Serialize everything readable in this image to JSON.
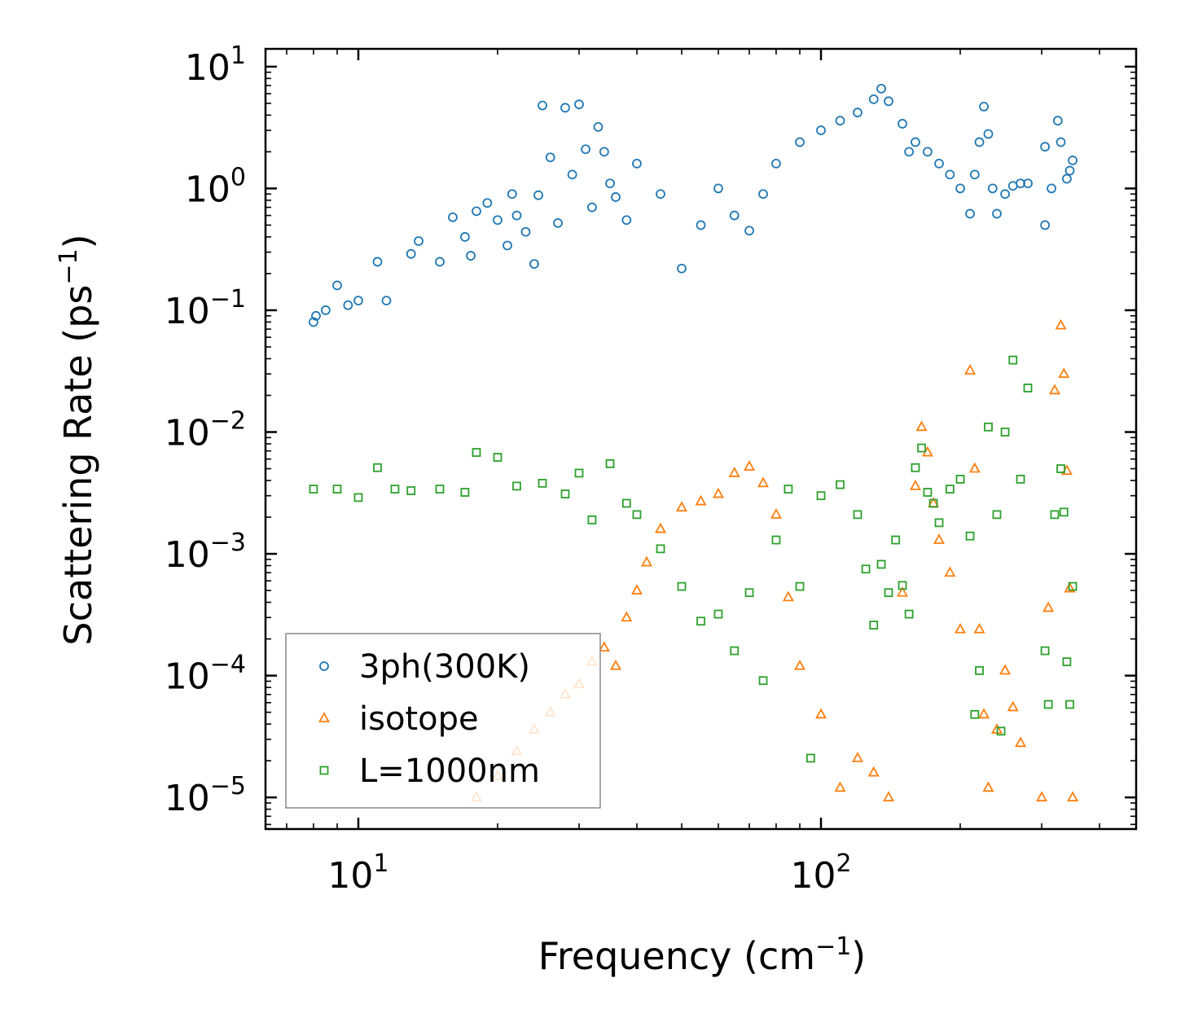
{
  "chart_data": {
    "type": "scatter",
    "title": "",
    "xlabel": "Frequency (cm",
    "xlabel_sup": "−1",
    "xlabel_close": ")",
    "ylabel": "Scattering Rate (ps",
    "ylabel_sup": "−1",
    "ylabel_close": ")",
    "xscale": "log",
    "yscale": "log",
    "xlim": [
      6.3,
      480
    ],
    "ylim": [
      5.5e-06,
      14
    ],
    "x_ticks": [
      {
        "value": 10,
        "base": "10",
        "exp": "1"
      },
      {
        "value": 100,
        "base": "10",
        "exp": "2"
      }
    ],
    "y_ticks": [
      {
        "value": 10,
        "base": "10",
        "exp": "1"
      },
      {
        "value": 1,
        "base": "10",
        "exp": "0"
      },
      {
        "value": 0.1,
        "base": "10",
        "exp": "−1"
      },
      {
        "value": 0.01,
        "base": "10",
        "exp": "−2"
      },
      {
        "value": 0.001,
        "base": "10",
        "exp": "−3"
      },
      {
        "value": 0.0001,
        "base": "10",
        "exp": "−4"
      },
      {
        "value": 1e-05,
        "base": "10",
        "exp": "−5"
      }
    ],
    "legend_position": "lower-left",
    "series": [
      {
        "name": "3ph(300K)",
        "marker": "circle",
        "color": "#1f77b4",
        "points": [
          [
            8,
            0.08
          ],
          [
            8.1,
            0.09
          ],
          [
            8.5,
            0.1
          ],
          [
            9,
            0.16
          ],
          [
            9.5,
            0.11
          ],
          [
            10,
            0.12
          ],
          [
            11,
            0.25
          ],
          [
            11.5,
            0.12
          ],
          [
            13,
            0.29
          ],
          [
            13.5,
            0.37
          ],
          [
            15,
            0.25
          ],
          [
            16,
            0.58
          ],
          [
            17,
            0.4
          ],
          [
            17.5,
            0.28
          ],
          [
            18,
            0.65
          ],
          [
            19,
            0.76
          ],
          [
            20,
            0.55
          ],
          [
            21,
            0.34
          ],
          [
            21.5,
            0.9
          ],
          [
            22,
            0.6
          ],
          [
            23,
            0.44
          ],
          [
            24,
            0.24
          ],
          [
            24.5,
            0.88
          ],
          [
            25,
            4.8
          ],
          [
            26,
            1.8
          ],
          [
            27,
            0.52
          ],
          [
            28,
            4.6
          ],
          [
            29,
            1.3
          ],
          [
            30,
            4.9
          ],
          [
            31,
            2.1
          ],
          [
            32,
            0.7
          ],
          [
            33,
            3.2
          ],
          [
            34,
            2.0
          ],
          [
            35,
            1.1
          ],
          [
            36,
            0.85
          ],
          [
            38,
            0.55
          ],
          [
            40,
            1.6
          ],
          [
            45,
            0.9
          ],
          [
            50,
            0.22
          ],
          [
            55,
            0.5
          ],
          [
            60,
            1.0
          ],
          [
            65,
            0.6
          ],
          [
            70,
            0.45
          ],
          [
            75,
            0.9
          ],
          [
            80,
            1.6
          ],
          [
            90,
            2.4
          ],
          [
            100,
            3.0
          ],
          [
            110,
            3.6
          ],
          [
            120,
            4.2
          ],
          [
            130,
            5.4
          ],
          [
            135,
            6.6
          ],
          [
            140,
            5.2
          ],
          [
            150,
            3.4
          ],
          [
            155,
            2.0
          ],
          [
            160,
            2.4
          ],
          [
            170,
            2.0
          ],
          [
            180,
            1.6
          ],
          [
            190,
            1.3
          ],
          [
            200,
            1.0
          ],
          [
            210,
            0.62
          ],
          [
            215,
            1.3
          ],
          [
            220,
            2.4
          ],
          [
            225,
            4.7
          ],
          [
            230,
            2.8
          ],
          [
            235,
            1.0
          ],
          [
            240,
            0.62
          ],
          [
            250,
            0.9
          ],
          [
            260,
            1.05
          ],
          [
            270,
            1.1
          ],
          [
            280,
            1.1
          ],
          [
            305,
            0.5
          ],
          [
            305,
            2.2
          ],
          [
            315,
            1.0
          ],
          [
            325,
            3.6
          ],
          [
            330,
            2.4
          ],
          [
            340,
            1.2
          ],
          [
            345,
            1.4
          ],
          [
            350,
            1.7
          ]
        ]
      },
      {
        "name": "isotope",
        "marker": "triangle",
        "color": "#ff7f0e",
        "points": [
          [
            18,
            1e-05
          ],
          [
            20,
            1.5e-05
          ],
          [
            22,
            2.4e-05
          ],
          [
            24,
            3.6e-05
          ],
          [
            26,
            5e-05
          ],
          [
            28,
            7e-05
          ],
          [
            30,
            8.5e-05
          ],
          [
            32,
            0.00013
          ],
          [
            34,
            0.00017
          ],
          [
            36,
            0.00012
          ],
          [
            38,
            0.0003
          ],
          [
            40,
            0.0005
          ],
          [
            42,
            0.00085
          ],
          [
            45,
            0.0016
          ],
          [
            50,
            0.0024
          ],
          [
            55,
            0.0027
          ],
          [
            60,
            0.0031
          ],
          [
            65,
            0.0046
          ],
          [
            70,
            0.0052
          ],
          [
            75,
            0.0038
          ],
          [
            80,
            0.0021
          ],
          [
            85,
            0.00044
          ],
          [
            90,
            0.00012
          ],
          [
            100,
            4.8e-05
          ],
          [
            110,
            1.2e-05
          ],
          [
            120,
            2.1e-05
          ],
          [
            130,
            1.6e-05
          ],
          [
            140,
            1e-05
          ],
          [
            150,
            0.00048
          ],
          [
            160,
            0.0036
          ],
          [
            165,
            0.011
          ],
          [
            170,
            0.0068
          ],
          [
            175,
            0.0026
          ],
          [
            180,
            0.0013
          ],
          [
            190,
            0.0007
          ],
          [
            200,
            0.00024
          ],
          [
            210,
            0.032
          ],
          [
            215,
            0.005
          ],
          [
            220,
            0.00024
          ],
          [
            225,
            4.8e-05
          ],
          [
            230,
            1.2e-05
          ],
          [
            240,
            3.6e-05
          ],
          [
            250,
            0.00011
          ],
          [
            260,
            5.5e-05
          ],
          [
            270,
            2.8e-05
          ],
          [
            300,
            1e-05
          ],
          [
            310,
            0.00036
          ],
          [
            320,
            0.022
          ],
          [
            330,
            0.075
          ],
          [
            335,
            0.03
          ],
          [
            340,
            0.0048
          ],
          [
            345,
            0.00052
          ],
          [
            350,
            1e-05
          ]
        ]
      },
      {
        "name": "L=1000nm",
        "marker": "square",
        "color": "#2ca02c",
        "points": [
          [
            8,
            0.0034
          ],
          [
            9,
            0.0034
          ],
          [
            10,
            0.0029
          ],
          [
            11,
            0.0051
          ],
          [
            12,
            0.0034
          ],
          [
            13,
            0.0033
          ],
          [
            15,
            0.0034
          ],
          [
            17,
            0.0032
          ],
          [
            18,
            0.0068
          ],
          [
            20,
            0.0062
          ],
          [
            22,
            0.0036
          ],
          [
            25,
            0.0038
          ],
          [
            28,
            0.0031
          ],
          [
            30,
            0.0046
          ],
          [
            32,
            0.0019
          ],
          [
            35,
            0.0055
          ],
          [
            38,
            0.0026
          ],
          [
            40,
            0.0021
          ],
          [
            45,
            0.0011
          ],
          [
            50,
            0.00054
          ],
          [
            55,
            0.00028
          ],
          [
            60,
            0.00032
          ],
          [
            65,
            0.00016
          ],
          [
            70,
            0.00048
          ],
          [
            75,
            9.1e-05
          ],
          [
            80,
            0.0013
          ],
          [
            85,
            0.0034
          ],
          [
            90,
            0.00054
          ],
          [
            95,
            2.1e-05
          ],
          [
            100,
            0.003
          ],
          [
            110,
            0.0037
          ],
          [
            120,
            0.0021
          ],
          [
            125,
            0.00075
          ],
          [
            130,
            0.00026
          ],
          [
            135,
            0.00082
          ],
          [
            140,
            0.00048
          ],
          [
            145,
            0.0013
          ],
          [
            150,
            0.00055
          ],
          [
            155,
            0.00032
          ],
          [
            160,
            0.0051
          ],
          [
            165,
            0.0074
          ],
          [
            170,
            0.0032
          ],
          [
            175,
            0.0026
          ],
          [
            180,
            0.0018
          ],
          [
            190,
            0.0034
          ],
          [
            200,
            0.0041
          ],
          [
            210,
            0.0014
          ],
          [
            215,
            4.8e-05
          ],
          [
            220,
            0.00011
          ],
          [
            230,
            0.011
          ],
          [
            240,
            0.0021
          ],
          [
            245,
            3.5e-05
          ],
          [
            250,
            0.01
          ],
          [
            260,
            0.039
          ],
          [
            270,
            0.0041
          ],
          [
            280,
            0.023
          ],
          [
            305,
            0.00016
          ],
          [
            310,
            5.8e-05
          ],
          [
            320,
            0.0021
          ],
          [
            330,
            0.005
          ],
          [
            335,
            0.0022
          ],
          [
            340,
            0.00013
          ],
          [
            345,
            5.8e-05
          ],
          [
            350,
            0.00054
          ]
        ]
      }
    ]
  }
}
